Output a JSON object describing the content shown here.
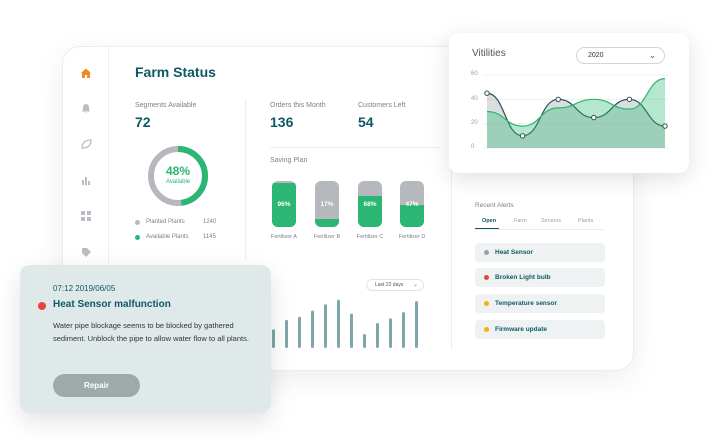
{
  "dashboard": {
    "title": "Farm Status",
    "segments": {
      "label": "Segments Available",
      "value": "72"
    },
    "orders": {
      "label": "Orders this Month",
      "value": "136"
    },
    "customers": {
      "label": "Customers Left",
      "value": "54"
    },
    "donut": {
      "percent_label": "48%",
      "sub_label": "Available",
      "percent": 48
    },
    "legend": [
      {
        "label": "Planted Plants",
        "value": "1240",
        "color": "#b5b9bd"
      },
      {
        "label": "Available Plants",
        "value": "1145",
        "color": "#2bb673"
      }
    ],
    "saving_plan": {
      "title": "Saving Plan",
      "tanks": [
        {
          "pct_label": "96%",
          "level": 0.96,
          "label": "Fertilizer A"
        },
        {
          "pct_label": "17%",
          "level": 0.17,
          "label": "Fertilizer B"
        },
        {
          "pct_label": "68%",
          "level": 0.68,
          "label": "Fertilizer C"
        },
        {
          "pct_label": "47%",
          "level": 0.47,
          "label": "Fertilizer D"
        }
      ]
    },
    "bars": {
      "period": "Last 22 days",
      "values": [
        12,
        18,
        20,
        24,
        28,
        31,
        22,
        9,
        16,
        19,
        23,
        30
      ]
    },
    "alerts": {
      "title": "Recent Alerts",
      "tabs": [
        "Open",
        "Farm",
        "Sensors",
        "Plants"
      ],
      "items": [
        {
          "label": "Heat Sensor",
          "color": "#9aa0a5"
        },
        {
          "label": "Broken Light bulb",
          "color": "#e8453c"
        },
        {
          "label": "Temperature sensor",
          "color": "#f5b400"
        },
        {
          "label": "Firmware update",
          "color": "#f5b400"
        }
      ]
    }
  },
  "vitilities": {
    "title": "Vitilities",
    "year": "2020",
    "yticks": [
      "60",
      "40",
      "20",
      "0"
    ]
  },
  "chart_data": {
    "type": "area",
    "title": "Vitilities",
    "ylim": [
      0,
      60
    ],
    "yticks": [
      0,
      20,
      40,
      60
    ],
    "series": [
      {
        "values": [
          45,
          10,
          40,
          25,
          40,
          18
        ]
      },
      {
        "values": [
          30,
          18,
          33,
          40,
          32,
          57
        ]
      }
    ]
  },
  "popup": {
    "time": "07:12  2019/06/05",
    "title": "Heat Sensor malfunction",
    "text": "Water pipe blockage seems to be blocked by gathered sediment. Unblock the pipe to allow water flow to all plants.",
    "button": "Repair"
  }
}
